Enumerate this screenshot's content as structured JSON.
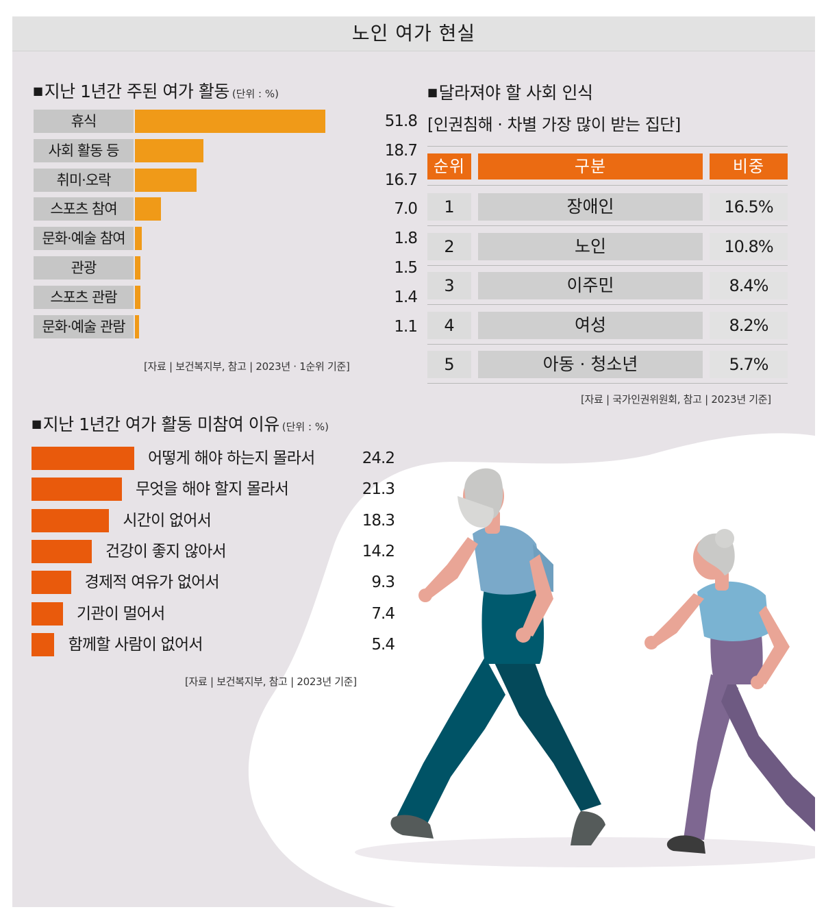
{
  "title": "노인 여가 현실",
  "section1": {
    "title": "지난 1년간 주된 여가 활동",
    "unit": "(단위 : %)",
    "source": "[자료 | 보건복지부, 참고 |  2023년 · 1순위 기준]"
  },
  "section2": {
    "title": "지난 1년간 여가 활동 미참여 이유",
    "unit": "(단위 : %)",
    "source": "[자료 | 보건복지부, 참고 | 2023년 기준]"
  },
  "section3": {
    "title": "달라져야 할 사회 인식",
    "subtitle": "[인권침해 · 차별 가장 많이 받는 집단]",
    "headers": [
      "순위",
      "구분",
      "비중"
    ],
    "source": "[자료 | 국가인권위원회, 참고 | 2023년 기준]"
  },
  "colors": {
    "chart1_bar": "#f09a18",
    "chart2_bar": "#e95a0c",
    "table_header": "#eb6b12",
    "label_bg": "#c6c6c6",
    "background": "#e7e3e7"
  },
  "chart_data": [
    {
      "type": "bar",
      "orientation": "horizontal",
      "title": "지난 1년간 주된 여가 활동",
      "unit": "%",
      "categories": [
        "휴식",
        "사회 활동 등",
        "취미·오락",
        "스포츠 참여",
        "문화·예술 참여",
        "관광",
        "스포츠 관람",
        "문화·예술 관람"
      ],
      "values": [
        51.8,
        18.7,
        16.7,
        7.0,
        1.8,
        1.5,
        1.4,
        1.1
      ],
      "value_labels": [
        "51.8",
        "18.7",
        "16.7",
        "7.0",
        "1.8",
        "1.5",
        "1.4",
        "1.1"
      ],
      "xlim": [
        0,
        51.8
      ]
    },
    {
      "type": "bar",
      "orientation": "horizontal",
      "title": "지난 1년간 여가 활동 미참여 이유",
      "unit": "%",
      "categories": [
        "어떻게 해야 하는지 몰라서",
        "무엇을 해야 할지 몰라서",
        "시간이 없어서",
        "건강이 좋지 않아서",
        "경제적 여유가 없어서",
        "기관이 멀어서",
        "함께할 사람이 없어서"
      ],
      "values": [
        24.2,
        21.3,
        18.3,
        14.2,
        9.3,
        7.4,
        5.4
      ],
      "value_labels": [
        "24.2",
        "21.3",
        "18.3",
        "14.2",
        "9.3",
        "7.4",
        "5.4"
      ],
      "xlim": [
        0,
        24.2
      ]
    },
    {
      "type": "table",
      "title": "달라져야 할 사회 인식",
      "columns": [
        "순위",
        "구분",
        "비중"
      ],
      "rows": [
        [
          "1",
          "장애인",
          "16.5%"
        ],
        [
          "2",
          "노인",
          "10.8%"
        ],
        [
          "3",
          "이주민",
          "8.4%"
        ],
        [
          "4",
          "여성",
          "8.2%"
        ],
        [
          "5",
          "아동 · 청소년",
          "5.7%"
        ]
      ]
    }
  ]
}
